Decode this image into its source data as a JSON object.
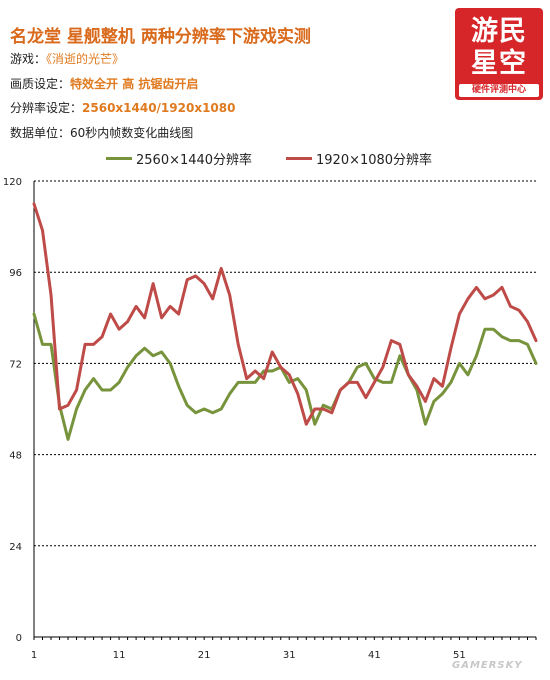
{
  "header": {
    "title": "名龙堂 星舰整机 两种分辨率下游戏实测",
    "game_label": "游戏：",
    "game_value": "《消逝的光芒》",
    "quality_label": "画质设定：",
    "quality_value": "特效全开  高  抗锯齿开启",
    "resolution_label": "分辨率设定：",
    "resolution_value": "2560x1440/1920x1080",
    "unit_text": "数据单位：60秒内帧数变化曲线图"
  },
  "logo": {
    "line1": "游民",
    "line2": "星空",
    "subtitle": "硬件评测中心"
  },
  "watermark": "GAMERSKY",
  "colors": {
    "series1": "#77933c",
    "series2": "#be4b48",
    "title": "#d9691b",
    "grid": "#000000"
  },
  "chart_data": {
    "type": "line",
    "title": "",
    "xlabel": "",
    "ylabel": "",
    "ylim": [
      0,
      120
    ],
    "yticks": [
      "0",
      "24",
      "48",
      "72",
      "96",
      "120"
    ],
    "xticks": [
      1,
      11,
      21,
      31,
      41,
      51
    ],
    "x_count": 60,
    "grid": true,
    "legend_position": "top",
    "series": [
      {
        "name": "2560×1440分辨率",
        "color": "#77933c",
        "values": [
          85,
          77,
          77,
          61,
          52,
          60,
          65,
          68,
          65,
          65,
          67,
          71,
          74,
          76,
          74,
          75,
          72,
          66,
          61,
          59,
          60,
          59,
          60,
          64,
          67,
          67,
          67,
          70,
          70,
          71,
          67,
          68,
          65,
          56,
          61,
          60,
          65,
          67,
          71,
          72,
          68,
          67,
          67,
          74,
          69,
          65,
          56,
          62,
          64,
          67,
          72,
          69,
          74,
          81,
          81,
          79,
          78,
          78,
          77,
          72
        ]
      },
      {
        "name": "1920×1080分辨率",
        "color": "#be4b48",
        "values": [
          114,
          107,
          90,
          60,
          61,
          65,
          77,
          77,
          79,
          85,
          81,
          83,
          87,
          84,
          93,
          84,
          87,
          85,
          94,
          95,
          93,
          89,
          97,
          90,
          77,
          68,
          70,
          68,
          75,
          71,
          69,
          64,
          56,
          60,
          60,
          59,
          65,
          67,
          67,
          63,
          67,
          71,
          78,
          77,
          69,
          66,
          62,
          68,
          66,
          76,
          85,
          89,
          92,
          89,
          90,
          92,
          87,
          86,
          83,
          78
        ]
      }
    ]
  }
}
